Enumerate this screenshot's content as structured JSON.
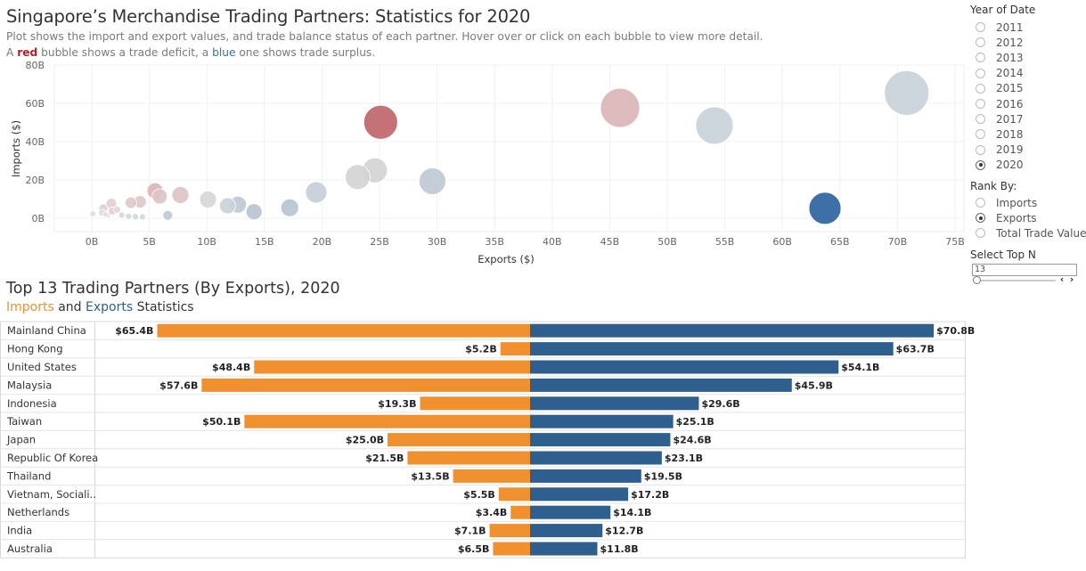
{
  "header": {
    "title": "Singapore’s Merchandise Trading Partners: Statistics for 2020",
    "subtitle_line1": "Plot shows the import and export values, and trade balance status of each partner. Hover over or click on each bubble to view more detail.",
    "subtitle_line2_a": "A ",
    "subtitle_line2_red": "red",
    "subtitle_line2_b": " bubble shows a trade deficit, a ",
    "subtitle_line2_blue": "blue",
    "subtitle_line2_c": " one shows trade surplus."
  },
  "bar_section": {
    "title": "Top 13 Trading Partners (By Exports), 2020",
    "legend_imports": "Imports",
    "legend_and": " and ",
    "legend_exports": "Exports",
    "legend_tail": " Statistics"
  },
  "sidebar": {
    "year_label": "Year of Date",
    "years": [
      "2011",
      "2012",
      "2013",
      "2014",
      "2015",
      "2016",
      "2017",
      "2018",
      "2019",
      "2020"
    ],
    "selected_year": "2020",
    "rank_label": "Rank By:",
    "rank_options": [
      "Imports",
      "Exports",
      "Total Trade Value"
    ],
    "selected_rank": "Exports",
    "topn_label": "Select Top N",
    "topn_value": "13"
  },
  "colors": {
    "imports": "#f0902f",
    "exports": "#2e5f8e",
    "deficit": "#c0666b",
    "surplus": "#2e64a0",
    "neutral": "#c5ced8"
  },
  "chart_data": [
    {
      "type": "scatter",
      "xlabel": "Exports ($)",
      "ylabel": "Imports ($)",
      "xlim": [
        0,
        75
      ],
      "ylim": [
        0,
        80
      ],
      "x_ticks": [
        "0B",
        "5B",
        "10B",
        "15B",
        "20B",
        "25B",
        "30B",
        "35B",
        "40B",
        "45B",
        "50B",
        "55B",
        "60B",
        "65B",
        "70B",
        "75B"
      ],
      "y_ticks": [
        "0B",
        "20B",
        "40B",
        "60B",
        "80B"
      ],
      "points": [
        {
          "x": 70.8,
          "y": 65.4,
          "size": 25,
          "color": "#c9d1da"
        },
        {
          "x": 63.7,
          "y": 5.2,
          "size": 18,
          "color": "#2e64a0"
        },
        {
          "x": 54.1,
          "y": 48.4,
          "size": 21,
          "color": "#c9d1da"
        },
        {
          "x": 45.9,
          "y": 57.6,
          "size": 22,
          "color": "#dbb5b7"
        },
        {
          "x": 29.6,
          "y": 19.3,
          "size": 15,
          "color": "#bfcad6"
        },
        {
          "x": 25.1,
          "y": 50.1,
          "size": 19,
          "color": "#c0666b"
        },
        {
          "x": 24.6,
          "y": 25.0,
          "size": 14,
          "color": "#d4d4d4"
        },
        {
          "x": 23.1,
          "y": 21.5,
          "size": 14,
          "color": "#d4d4d4"
        },
        {
          "x": 19.5,
          "y": 13.5,
          "size": 12,
          "color": "#c5ced8"
        },
        {
          "x": 17.2,
          "y": 5.5,
          "size": 10,
          "color": "#b8c4d2"
        },
        {
          "x": 14.1,
          "y": 3.4,
          "size": 9,
          "color": "#b8c4d2"
        },
        {
          "x": 12.7,
          "y": 7.1,
          "size": 9.5,
          "color": "#bfcad6"
        },
        {
          "x": 11.8,
          "y": 6.5,
          "size": 9,
          "color": "#c9d1da"
        },
        {
          "x": 10.1,
          "y": 9.8,
          "size": 9.5,
          "color": "#d7d7d7"
        },
        {
          "x": 7.7,
          "y": 12.1,
          "size": 9.5,
          "color": "#dcc4c5"
        },
        {
          "x": 5.9,
          "y": 11.4,
          "size": 8.5,
          "color": "#dcc4c5"
        },
        {
          "x": 5.5,
          "y": 14.3,
          "size": 9,
          "color": "#dbb5b7"
        },
        {
          "x": 4.2,
          "y": 8.6,
          "size": 7,
          "color": "#e0c8c9"
        },
        {
          "x": 3.4,
          "y": 8.1,
          "size": 6.5,
          "color": "#e0c8c9"
        },
        {
          "x": 6.6,
          "y": 1.5,
          "size": 5.5,
          "color": "#bfcad6"
        },
        {
          "x": 1.7,
          "y": 7.6,
          "size": 6,
          "color": "#e3cfd0"
        },
        {
          "x": 1.0,
          "y": 5.2,
          "size": 5,
          "color": "#e3cfd0"
        },
        {
          "x": 1.8,
          "y": 3.8,
          "size": 4.5,
          "color": "#e3cfd0"
        },
        {
          "x": 2.2,
          "y": 4.5,
          "size": 4,
          "color": "#e6d5d6"
        },
        {
          "x": 0.9,
          "y": 2.8,
          "size": 4,
          "color": "#dddddd"
        },
        {
          "x": 2.6,
          "y": 1.6,
          "size": 3.5,
          "color": "#d2d8de"
        },
        {
          "x": 3.2,
          "y": 1.0,
          "size": 3.5,
          "color": "#d2d8de"
        },
        {
          "x": 3.8,
          "y": 0.8,
          "size": 3.5,
          "color": "#d2d8de"
        },
        {
          "x": 4.4,
          "y": 0.7,
          "size": 3.5,
          "color": "#d2d8de"
        },
        {
          "x": 0.1,
          "y": 2.3,
          "size": 3.5,
          "color": "#dddddd"
        },
        {
          "x": 1.4,
          "y": 1.5,
          "size": 3,
          "color": "#dddddd"
        },
        {
          "x": 1.2,
          "y": 2.1,
          "size": 3,
          "color": "#dddddd"
        }
      ]
    },
    {
      "type": "bar",
      "categories": [
        "Mainland China",
        "Hong Kong",
        "United States",
        "Malaysia",
        "Indonesia",
        "Taiwan",
        "Japan",
        "Republic Of Korea",
        "Thailand",
        "Vietnam, Sociali..",
        "Netherlands",
        "India",
        "Australia"
      ],
      "series": [
        {
          "name": "Imports",
          "values": [
            65.4,
            5.2,
            48.4,
            57.6,
            19.3,
            50.1,
            25.0,
            21.5,
            13.5,
            5.5,
            3.4,
            7.1,
            6.5
          ],
          "labels": [
            "$65.4B",
            "$5.2B",
            "$48.4B",
            "$57.6B",
            "$19.3B",
            "$50.1B",
            "$25.0B",
            "$21.5B",
            "$13.5B",
            "$5.5B",
            "$3.4B",
            "$7.1B",
            "$6.5B"
          ]
        },
        {
          "name": "Exports",
          "values": [
            70.8,
            63.7,
            54.1,
            45.9,
            29.6,
            25.1,
            24.6,
            23.1,
            19.5,
            17.2,
            14.1,
            12.7,
            11.8
          ],
          "labels": [
            "$70.8B",
            "$63.7B",
            "$54.1B",
            "$45.9B",
            "$29.6B",
            "$25.1B",
            "$24.6B",
            "$23.1B",
            "$19.5B",
            "$17.2B",
            "$14.1B",
            "$12.7B",
            "$11.8B"
          ]
        }
      ]
    }
  ]
}
